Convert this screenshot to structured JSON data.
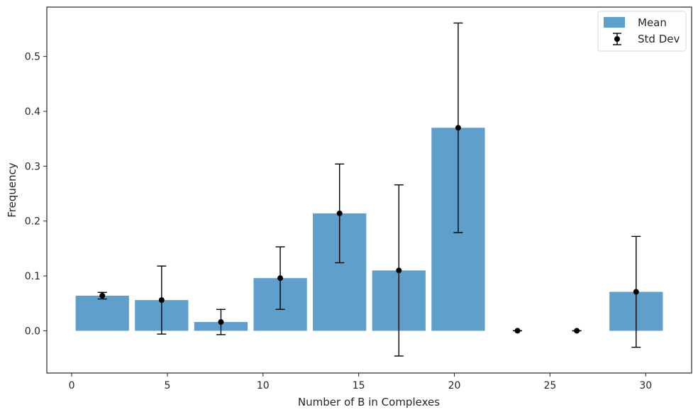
{
  "chart_data": {
    "type": "bar",
    "title": "",
    "xlabel": "Number of B in Complexes",
    "ylabel": "Frequency",
    "xlim": [
      -1.3,
      32.4
    ],
    "ylim": [
      -0.077,
      0.59
    ],
    "xticks": [
      0,
      5,
      10,
      15,
      20,
      25,
      30
    ],
    "yticks": [
      0.0,
      0.1,
      0.2,
      0.3,
      0.4,
      0.5
    ],
    "ytick_labels": [
      "0.0",
      "0.1",
      "0.2",
      "0.3",
      "0.4",
      "0.5"
    ],
    "grid": false,
    "legend_position": "top-right",
    "bar_color": "#5f9fcb",
    "errorbar_color": "#000000",
    "series": [
      {
        "name": "Mean",
        "x": [
          1.6,
          4.7,
          7.8,
          10.9,
          14.0,
          17.1,
          20.2,
          23.3,
          26.4,
          29.5
        ],
        "values": [
          0.064,
          0.056,
          0.016,
          0.096,
          0.214,
          0.11,
          0.37,
          0.0,
          0.0,
          0.071
        ]
      },
      {
        "name": "Std Dev",
        "x": [
          1.6,
          4.7,
          7.8,
          10.9,
          14.0,
          17.1,
          20.2,
          23.3,
          26.4,
          29.5
        ],
        "values": [
          0.064,
          0.056,
          0.016,
          0.096,
          0.214,
          0.11,
          0.37,
          0.0,
          0.0,
          0.071
        ],
        "error": [
          0.006,
          0.062,
          0.023,
          0.057,
          0.09,
          0.156,
          0.191,
          0.0,
          0.0,
          0.101
        ]
      }
    ],
    "bar_width": 2.79
  }
}
